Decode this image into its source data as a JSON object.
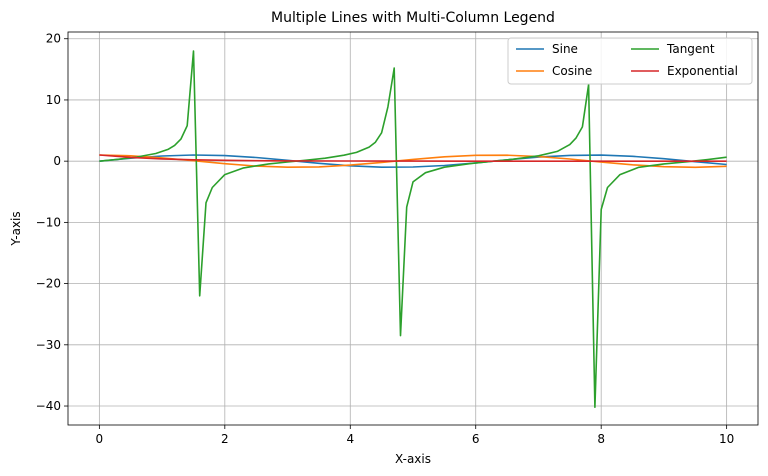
{
  "chart_data": {
    "type": "line",
    "title": "Multiple Lines with Multi-Column Legend",
    "xlabel": "X-axis",
    "ylabel": "Y-axis",
    "xlim": [
      -0.5,
      10.5
    ],
    "ylim": [
      -43.1,
      21.1
    ],
    "x_ticks": [
      0,
      2,
      4,
      6,
      8,
      10
    ],
    "x_tick_labels": [
      "0",
      "2",
      "4",
      "6",
      "8",
      "10"
    ],
    "y_ticks": [
      20,
      10,
      0,
      -10,
      -20,
      -30,
      -40
    ],
    "y_tick_labels": [
      "20",
      "10",
      "0",
      "−10",
      "−20",
      "−30",
      "−40"
    ],
    "grid": true,
    "legend": {
      "placement": "top-right",
      "columns": 2
    },
    "series": [
      {
        "name": "Sine",
        "color": "#1f77b4",
        "x": [
          0,
          0.5,
          1,
          1.5,
          2,
          2.5,
          3,
          3.5,
          4,
          4.5,
          5,
          5.5,
          6,
          6.5,
          7,
          7.5,
          8,
          8.5,
          9,
          9.5,
          10
        ],
        "y": [
          0,
          0.48,
          0.84,
          1.0,
          0.91,
          0.6,
          0.14,
          -0.35,
          -0.76,
          -0.98,
          -0.96,
          -0.71,
          -0.28,
          0.22,
          0.66,
          0.94,
          0.99,
          0.8,
          0.41,
          -0.08,
          -0.54
        ]
      },
      {
        "name": "Cosine",
        "color": "#ff7f0e",
        "x": [
          0,
          0.5,
          1,
          1.5,
          2,
          2.5,
          3,
          3.5,
          4,
          4.5,
          5,
          5.5,
          6,
          6.5,
          7,
          7.5,
          8,
          8.5,
          9,
          9.5,
          10
        ],
        "y": [
          1.0,
          0.88,
          0.54,
          0.07,
          -0.42,
          -0.8,
          -0.99,
          -0.94,
          -0.65,
          -0.21,
          0.28,
          0.71,
          0.96,
          0.98,
          0.75,
          0.35,
          -0.15,
          -0.6,
          -0.91,
          -1.0,
          -0.84
        ]
      },
      {
        "name": "Tangent",
        "color": "#2ca02c",
        "x": [
          0,
          0.3,
          0.6,
          0.9,
          1.1,
          1.2,
          1.3,
          1.4,
          1.5,
          1.6,
          1.7,
          1.8,
          2.0,
          2.3,
          2.7,
          3.0,
          3.3,
          3.6,
          3.9,
          4.1,
          4.3,
          4.4,
          4.5,
          4.6,
          4.7,
          4.8,
          4.9,
          5.0,
          5.2,
          5.5,
          5.9,
          6.2,
          6.6,
          7.0,
          7.3,
          7.5,
          7.6,
          7.7,
          7.8,
          7.9,
          8.0,
          8.1,
          8.3,
          8.6,
          9.0,
          9.4,
          9.7,
          10.0
        ],
        "y": [
          0,
          0.31,
          0.68,
          1.26,
          1.96,
          2.57,
          3.6,
          5.8,
          18.0,
          -22.0,
          -6.8,
          -4.3,
          -2.2,
          -1.1,
          -0.45,
          -0.14,
          0.16,
          0.49,
          0.97,
          1.43,
          2.29,
          3.1,
          4.64,
          8.86,
          15.2,
          -28.5,
          -7.5,
          -3.38,
          -1.89,
          -0.99,
          -0.41,
          -0.08,
          0.32,
          0.87,
          1.6,
          2.71,
          3.8,
          5.6,
          12.5,
          -40.2,
          -7.9,
          -4.3,
          -2.2,
          -1.0,
          -0.45,
          -0.07,
          0.26,
          0.65
        ]
      },
      {
        "name": "Exponential",
        "color": "#d62728",
        "x": [
          0,
          0.5,
          1,
          1.5,
          2,
          2.5,
          3,
          4,
          5,
          6,
          7,
          8,
          9,
          10
        ],
        "y": [
          1.0,
          0.61,
          0.37,
          0.22,
          0.14,
          0.08,
          0.05,
          0.02,
          0.01,
          0.0,
          0.0,
          0.0,
          0.0,
          0.0
        ]
      }
    ]
  }
}
